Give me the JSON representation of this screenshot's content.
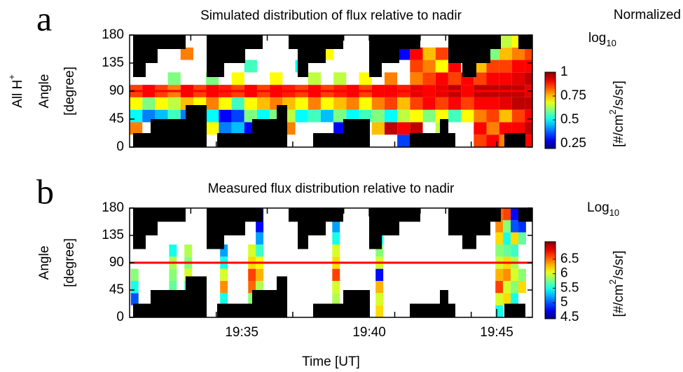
{
  "chart_data": [
    {
      "type": "heatmap",
      "panel_label": "a",
      "title": "Simulated distribution of flux relative to nadir",
      "row_label": [
        "All H",
        "+"
      ],
      "ylabel": [
        "Angle",
        "[degree]"
      ],
      "xlim": [
        30.6,
        46.4
      ],
      "xticks": [
        31,
        32,
        33,
        34,
        35,
        36,
        37,
        38,
        39,
        40,
        41,
        42,
        43,
        44,
        45,
        46
      ],
      "ylim": [
        0,
        180
      ],
      "yticks": [
        0,
        45,
        90,
        135,
        180
      ],
      "bins": [
        30.6,
        31.1,
        31.6,
        32.1,
        32.6,
        33.1,
        33.6,
        34.1,
        34.6,
        35.1,
        35.6,
        36.1,
        36.6,
        37.1,
        37.6,
        38.1,
        38.6,
        39.1,
        39.6,
        40.1,
        40.6,
        41.1,
        41.6,
        42.1,
        42.6,
        43.1,
        43.6,
        44.1,
        44.6,
        45.1,
        45.6,
        46.1,
        46.4
      ],
      "ybins": [
        0,
        20,
        40,
        60,
        80,
        100,
        120,
        140,
        160,
        180
      ],
      "z": [
        [
          null,
          0.8,
          0.5,
          0.7,
          0.85,
          null,
          null,
          null,
          null
        ],
        [
          null,
          null,
          0.4,
          0.6,
          0.9,
          null,
          null,
          null,
          null
        ],
        [
          null,
          null,
          0.45,
          0.7,
          0.85,
          null,
          null,
          null,
          null
        ],
        [
          null,
          null,
          0.55,
          0.65,
          0.8,
          0.6,
          null,
          null,
          null
        ],
        [
          null,
          null,
          0.4,
          0.75,
          0.9,
          null,
          null,
          0.8,
          null
        ],
        [
          null,
          null,
          0.6,
          0.7,
          0.85,
          null,
          null,
          null,
          null
        ],
        [
          null,
          0.7,
          0.5,
          0.8,
          0.9,
          0.6,
          null,
          null,
          null
        ],
        [
          null,
          0.4,
          0.3,
          0.7,
          0.88,
          null,
          null,
          0.85,
          null
        ],
        [
          null,
          0.45,
          0.35,
          0.55,
          0.85,
          0.7,
          null,
          null,
          null
        ],
        [
          null,
          0.3,
          0.6,
          0.7,
          0.9,
          null,
          0.55,
          null,
          null
        ],
        [
          null,
          null,
          0.5,
          0.75,
          0.85,
          null,
          null,
          null,
          null
        ],
        [
          0.4,
          null,
          0.6,
          0.8,
          0.9,
          0.7,
          null,
          null,
          null
        ],
        [
          null,
          0.8,
          0.65,
          0.75,
          0.88,
          null,
          null,
          null,
          null
        ],
        [
          null,
          null,
          0.5,
          0.7,
          0.85,
          null,
          0.5,
          null,
          null
        ],
        [
          null,
          null,
          0.55,
          0.8,
          0.9,
          0.65,
          null,
          null,
          null
        ],
        [
          null,
          null,
          0.45,
          0.7,
          0.85,
          null,
          null,
          0.7,
          null
        ],
        [
          null,
          0.3,
          0.6,
          0.75,
          0.88,
          0.65,
          null,
          null,
          null
        ],
        [
          null,
          null,
          0.5,
          0.8,
          0.9,
          null,
          null,
          null,
          null
        ],
        [
          null,
          null,
          0.55,
          0.7,
          0.85,
          0.7,
          null,
          null,
          null
        ],
        [
          null,
          0.75,
          0.6,
          0.8,
          0.9,
          null,
          null,
          null,
          null
        ],
        [
          null,
          0.95,
          0.5,
          0.85,
          0.9,
          0.8,
          null,
          null,
          null
        ],
        [
          0.35,
          0.9,
          0.65,
          0.75,
          0.88,
          null,
          null,
          0.3,
          null
        ],
        [
          null,
          0.95,
          0.7,
          0.85,
          0.92,
          0.8,
          0.85,
          0.9,
          null
        ],
        [
          null,
          null,
          0.6,
          0.9,
          0.9,
          0.85,
          0.8,
          0.75,
          null
        ],
        [
          null,
          0.65,
          0.7,
          0.85,
          0.92,
          0.9,
          0.7,
          0.85,
          null
        ],
        [
          null,
          null,
          0.55,
          0.9,
          0.95,
          0.85,
          0.9,
          0.8,
          null
        ],
        [
          null,
          null,
          0.7,
          0.85,
          0.9,
          0.9,
          null,
          null,
          null
        ],
        [
          0.85,
          0.9,
          0.8,
          0.9,
          0.95,
          0.85,
          0.75,
          null,
          null
        ],
        [
          0.9,
          0.8,
          0.85,
          0.9,
          0.95,
          0.9,
          0.85,
          0.6,
          0.7
        ],
        [
          0.8,
          0.9,
          0.75,
          0.92,
          0.95,
          0.9,
          0.85,
          0.75,
          0.65
        ],
        [
          0.95,
          0.9,
          0.85,
          0.95,
          0.95,
          0.92,
          0.9,
          0.8,
          0.7
        ],
        [
          0.9,
          0.95,
          0.9,
          0.95,
          0.92,
          0.95,
          0.9,
          0.85,
          null
        ]
      ],
      "reference_line": 90,
      "reference_color": "#ff0000",
      "colorbar": {
        "title": "Normalized",
        "scale": [
          "log",
          "10"
        ],
        "units": [
          "[#/cm",
          "2",
          "/s/sr]"
        ],
        "lim": [
          0.2,
          1
        ],
        "ticks": [
          0.25,
          0.5,
          0.75,
          1
        ]
      }
    },
    {
      "type": "heatmap",
      "panel_label": "b",
      "title": "Measured flux distribution relative to nadir",
      "ylabel": [
        "Angle",
        "[degree]"
      ],
      "xlabel": "Time [UT]",
      "xlim": [
        30.6,
        46.4
      ],
      "xticks": [
        {
          "value": 35,
          "label": "19:35"
        },
        {
          "value": 40,
          "label": "19:40"
        },
        {
          "value": 45,
          "label": "19:45"
        }
      ],
      "xminor_ticks": [
        31,
        32,
        33,
        34,
        36,
        37,
        38,
        39,
        41,
        42,
        43,
        44,
        46
      ],
      "ylim": [
        0,
        180
      ],
      "yticks": [
        0,
        45,
        90,
        135,
        180
      ],
      "x": [
        30.8,
        32.3,
        32.9,
        34.3,
        35.4,
        35.7,
        38.7,
        40.4,
        45.1,
        45.4,
        45.7,
        46.0
      ],
      "ybins": [
        0,
        20,
        40,
        60,
        80,
        100,
        120,
        140,
        160,
        180
      ],
      "z": [
        [
          null,
          5.0,
          5.5,
          5.8,
          null,
          null,
          null,
          null,
          null
        ],
        [
          null,
          null,
          5.7,
          5.8,
          5.9,
          5.5,
          null,
          null,
          null
        ],
        [
          null,
          null,
          5.6,
          6.0,
          5.8,
          5.9,
          null,
          null,
          null
        ],
        [
          null,
          5.5,
          6.4,
          6.0,
          5.5,
          5.2,
          null,
          null,
          null
        ],
        [
          null,
          5.8,
          6.5,
          6.6,
          6.2,
          6.0,
          null,
          null,
          null
        ],
        [
          null,
          null,
          5.9,
          6.3,
          6.1,
          5.6,
          5.2,
          4.8,
          4.6
        ],
        [
          null,
          5.9,
          6.0,
          6.6,
          6.2,
          6.0,
          5.5,
          5.2,
          5.0
        ],
        [
          6.2,
          6.0,
          6.3,
          4.8,
          6.0,
          5.8,
          5.5,
          5.2,
          null
        ],
        [
          5.5,
          6.0,
          6.6,
          6.3,
          6.0,
          5.8,
          6.2,
          6.4,
          6.5
        ],
        [
          null,
          6.2,
          6.0,
          6.4,
          6.2,
          5.7,
          5.5,
          5.8,
          6.6
        ],
        [
          null,
          5.5,
          5.8,
          6.0,
          5.9,
          5.6,
          6.2,
          5.0,
          4.8
        ],
        [
          null,
          null,
          6.2,
          5.8,
          null,
          null,
          5.7,
          4.9,
          null
        ]
      ],
      "reference_line": 90,
      "reference_color": "#ff0000",
      "colorbar": {
        "title": [
          "Log",
          "10"
        ],
        "units": [
          "[#/cm",
          "2",
          "/s/sr]"
        ],
        "lim": [
          4.45,
          7.1
        ],
        "ticks": [
          4.5,
          5,
          5.5,
          6,
          6.5
        ]
      }
    }
  ]
}
